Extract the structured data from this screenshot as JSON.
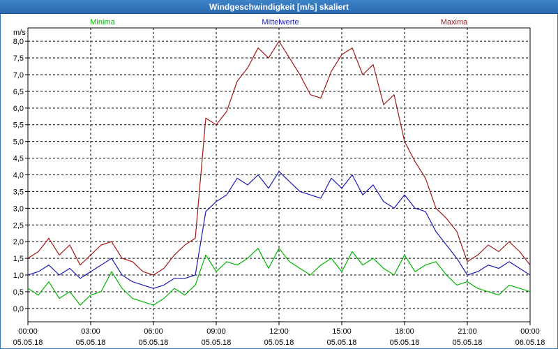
{
  "window": {
    "title": "Windgeschwindigkeit [m/s] skaliert"
  },
  "chart_data": {
    "type": "line",
    "ylabel": "m/s",
    "ylim": [
      -0.4,
      8.4
    ],
    "y_ticks": [
      "0,0",
      "0,5",
      "1,0",
      "1,5",
      "2,0",
      "2,5",
      "3,0",
      "3,5",
      "4,0",
      "4,5",
      "5,0",
      "5,5",
      "6,0",
      "6,5",
      "7,0",
      "7,5",
      "8,0"
    ],
    "y_tick_values": [
      0,
      0.5,
      1,
      1.5,
      2,
      2.5,
      3,
      3.5,
      4,
      4.5,
      5,
      5.5,
      6,
      6.5,
      7,
      7.5,
      8
    ],
    "x_range": [
      0,
      24
    ],
    "x_tick_hours": [
      0,
      3,
      6,
      9,
      12,
      15,
      18,
      21,
      24
    ],
    "x_tick_times": [
      "00:00",
      "03:00",
      "06:00",
      "09:00",
      "12:00",
      "15:00",
      "18:00",
      "21:00",
      "00:00"
    ],
    "x_tick_dates": [
      "05.05.18",
      "05.05.18",
      "05.05.18",
      "05.05.18",
      "05.05.18",
      "05.05.18",
      "05.05.18",
      "05.05.18",
      "06.05.18"
    ],
    "grid": true,
    "series": [
      {
        "name": "Minima",
        "color": "#00b400",
        "x": [
          0,
          0.5,
          1,
          1.5,
          2,
          2.5,
          3,
          3.5,
          4,
          4.5,
          5,
          5.5,
          6,
          6.5,
          7,
          7.5,
          8,
          8.5,
          9,
          9.5,
          10,
          10.5,
          11,
          11.5,
          12,
          12.5,
          13,
          13.5,
          14,
          14.5,
          15,
          15.5,
          16,
          16.5,
          17,
          17.5,
          18,
          18.5,
          19,
          19.5,
          20,
          20.5,
          21,
          21.5,
          22,
          22.5,
          23,
          23.5,
          24
        ],
        "values": [
          0.6,
          0.4,
          0.8,
          0.3,
          0.5,
          0.1,
          0.4,
          0.5,
          1.1,
          0.6,
          0.3,
          0.2,
          0.1,
          0.3,
          0.6,
          0.4,
          0.7,
          1.6,
          1.1,
          1.4,
          1.3,
          1.5,
          1.8,
          1.2,
          1.8,
          1.4,
          1.2,
          1.0,
          1.3,
          1.5,
          1.1,
          1.7,
          1.3,
          1.5,
          1.2,
          1.0,
          1.6,
          1.1,
          1.3,
          1.4,
          1.0,
          0.7,
          0.8,
          0.6,
          0.5,
          0.4,
          0.7,
          0.6,
          0.5
        ]
      },
      {
        "name": "Mittelwerte",
        "color": "#1a1ab4",
        "x": [
          0,
          0.5,
          1,
          1.5,
          2,
          2.5,
          3,
          3.5,
          4,
          4.5,
          5,
          5.5,
          6,
          6.5,
          7,
          7.5,
          8,
          8.5,
          9,
          9.5,
          10,
          10.5,
          11,
          11.5,
          12,
          12.5,
          13,
          13.5,
          14,
          14.5,
          15,
          15.5,
          16,
          16.5,
          17,
          17.5,
          18,
          18.5,
          19,
          19.5,
          20,
          20.5,
          21,
          21.5,
          22,
          22.5,
          23,
          23.5,
          24
        ],
        "values": [
          1.0,
          1.1,
          1.3,
          1.0,
          1.2,
          0.9,
          1.1,
          1.3,
          1.5,
          1.0,
          0.8,
          0.7,
          0.6,
          0.7,
          0.9,
          0.9,
          1.0,
          2.9,
          3.2,
          3.4,
          3.9,
          3.7,
          4.0,
          3.6,
          4.1,
          3.8,
          3.5,
          3.4,
          3.3,
          3.9,
          3.6,
          4.0,
          3.4,
          3.7,
          3.2,
          3.0,
          3.4,
          3.0,
          2.9,
          2.3,
          1.9,
          1.5,
          1.0,
          1.1,
          1.3,
          1.2,
          1.4,
          1.2,
          1.0
        ]
      },
      {
        "name": "Maxima",
        "color": "#a01818",
        "x": [
          0,
          0.5,
          1,
          1.5,
          2,
          2.5,
          3,
          3.5,
          4,
          4.5,
          5,
          5.5,
          6,
          6.5,
          7,
          7.5,
          8,
          8.5,
          9,
          9.5,
          10,
          10.5,
          11,
          11.5,
          12,
          12.5,
          13,
          13.5,
          14,
          14.5,
          15,
          15.5,
          16,
          16.5,
          17,
          17.5,
          18,
          18.5,
          19,
          19.5,
          20,
          20.5,
          21,
          21.5,
          22,
          22.5,
          23,
          23.5,
          24
        ],
        "values": [
          1.5,
          1.7,
          2.1,
          1.6,
          1.9,
          1.3,
          1.6,
          1.9,
          2.0,
          1.5,
          1.4,
          1.1,
          1.0,
          1.2,
          1.6,
          1.9,
          2.1,
          5.7,
          5.5,
          5.9,
          6.8,
          7.2,
          7.8,
          7.5,
          8.0,
          7.5,
          7.0,
          6.4,
          6.3,
          7.1,
          7.6,
          7.8,
          7.0,
          7.3,
          6.1,
          6.4,
          5.0,
          4.4,
          3.9,
          3.0,
          2.7,
          2.3,
          1.4,
          1.6,
          1.9,
          1.7,
          2.0,
          1.7,
          1.3
        ]
      }
    ]
  }
}
